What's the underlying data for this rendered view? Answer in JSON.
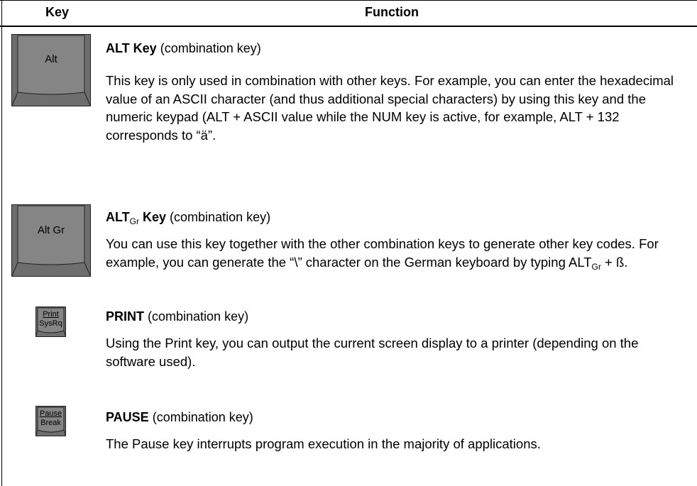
{
  "header": {
    "key": "Key",
    "function": "Function"
  },
  "rows": [
    {
      "key": [
        "Alt"
      ],
      "title": [
        {
          "text": "ALT Key"
        }
      ],
      "note": "(combination key)",
      "description": [
        {
          "text": "This key is only used in combination with other keys. For example, you can enter the hexadecimal value of an ASCII character (and thus additional special characters) by using this key and the numeric keypad (ALT + ASCII value while the NUM key is active, for example, ALT + 132 corresponds to “ä”."
        }
      ]
    },
    {
      "key": [
        "Alt Gr"
      ],
      "title": [
        {
          "text": "ALT"
        },
        {
          "sub": "Gr"
        },
        {
          "text": " Key"
        }
      ],
      "note": "(combination key)",
      "description": [
        {
          "text": "You can use this key together with the other combination keys to generate other key codes. For example, you can generate the “\\” character on the German keyboard by typing ALT"
        },
        {
          "sub": "Gr"
        },
        {
          "text": " + ß."
        }
      ]
    },
    {
      "key": [
        "Print",
        "SysRq"
      ],
      "title": [
        {
          "text": "PRINT"
        }
      ],
      "note": "(combination key)",
      "description": [
        {
          "text": "Using the Print key, you can output the current screen display to a printer (depending on the software used)."
        }
      ]
    },
    {
      "key": [
        "Pause",
        "Break"
      ],
      "title": [
        {
          "text": "PAUSE"
        }
      ],
      "note": "(combination key)",
      "description": [
        {
          "text": "The Pause key interrupts program execution in the majority of applications."
        }
      ]
    }
  ]
}
